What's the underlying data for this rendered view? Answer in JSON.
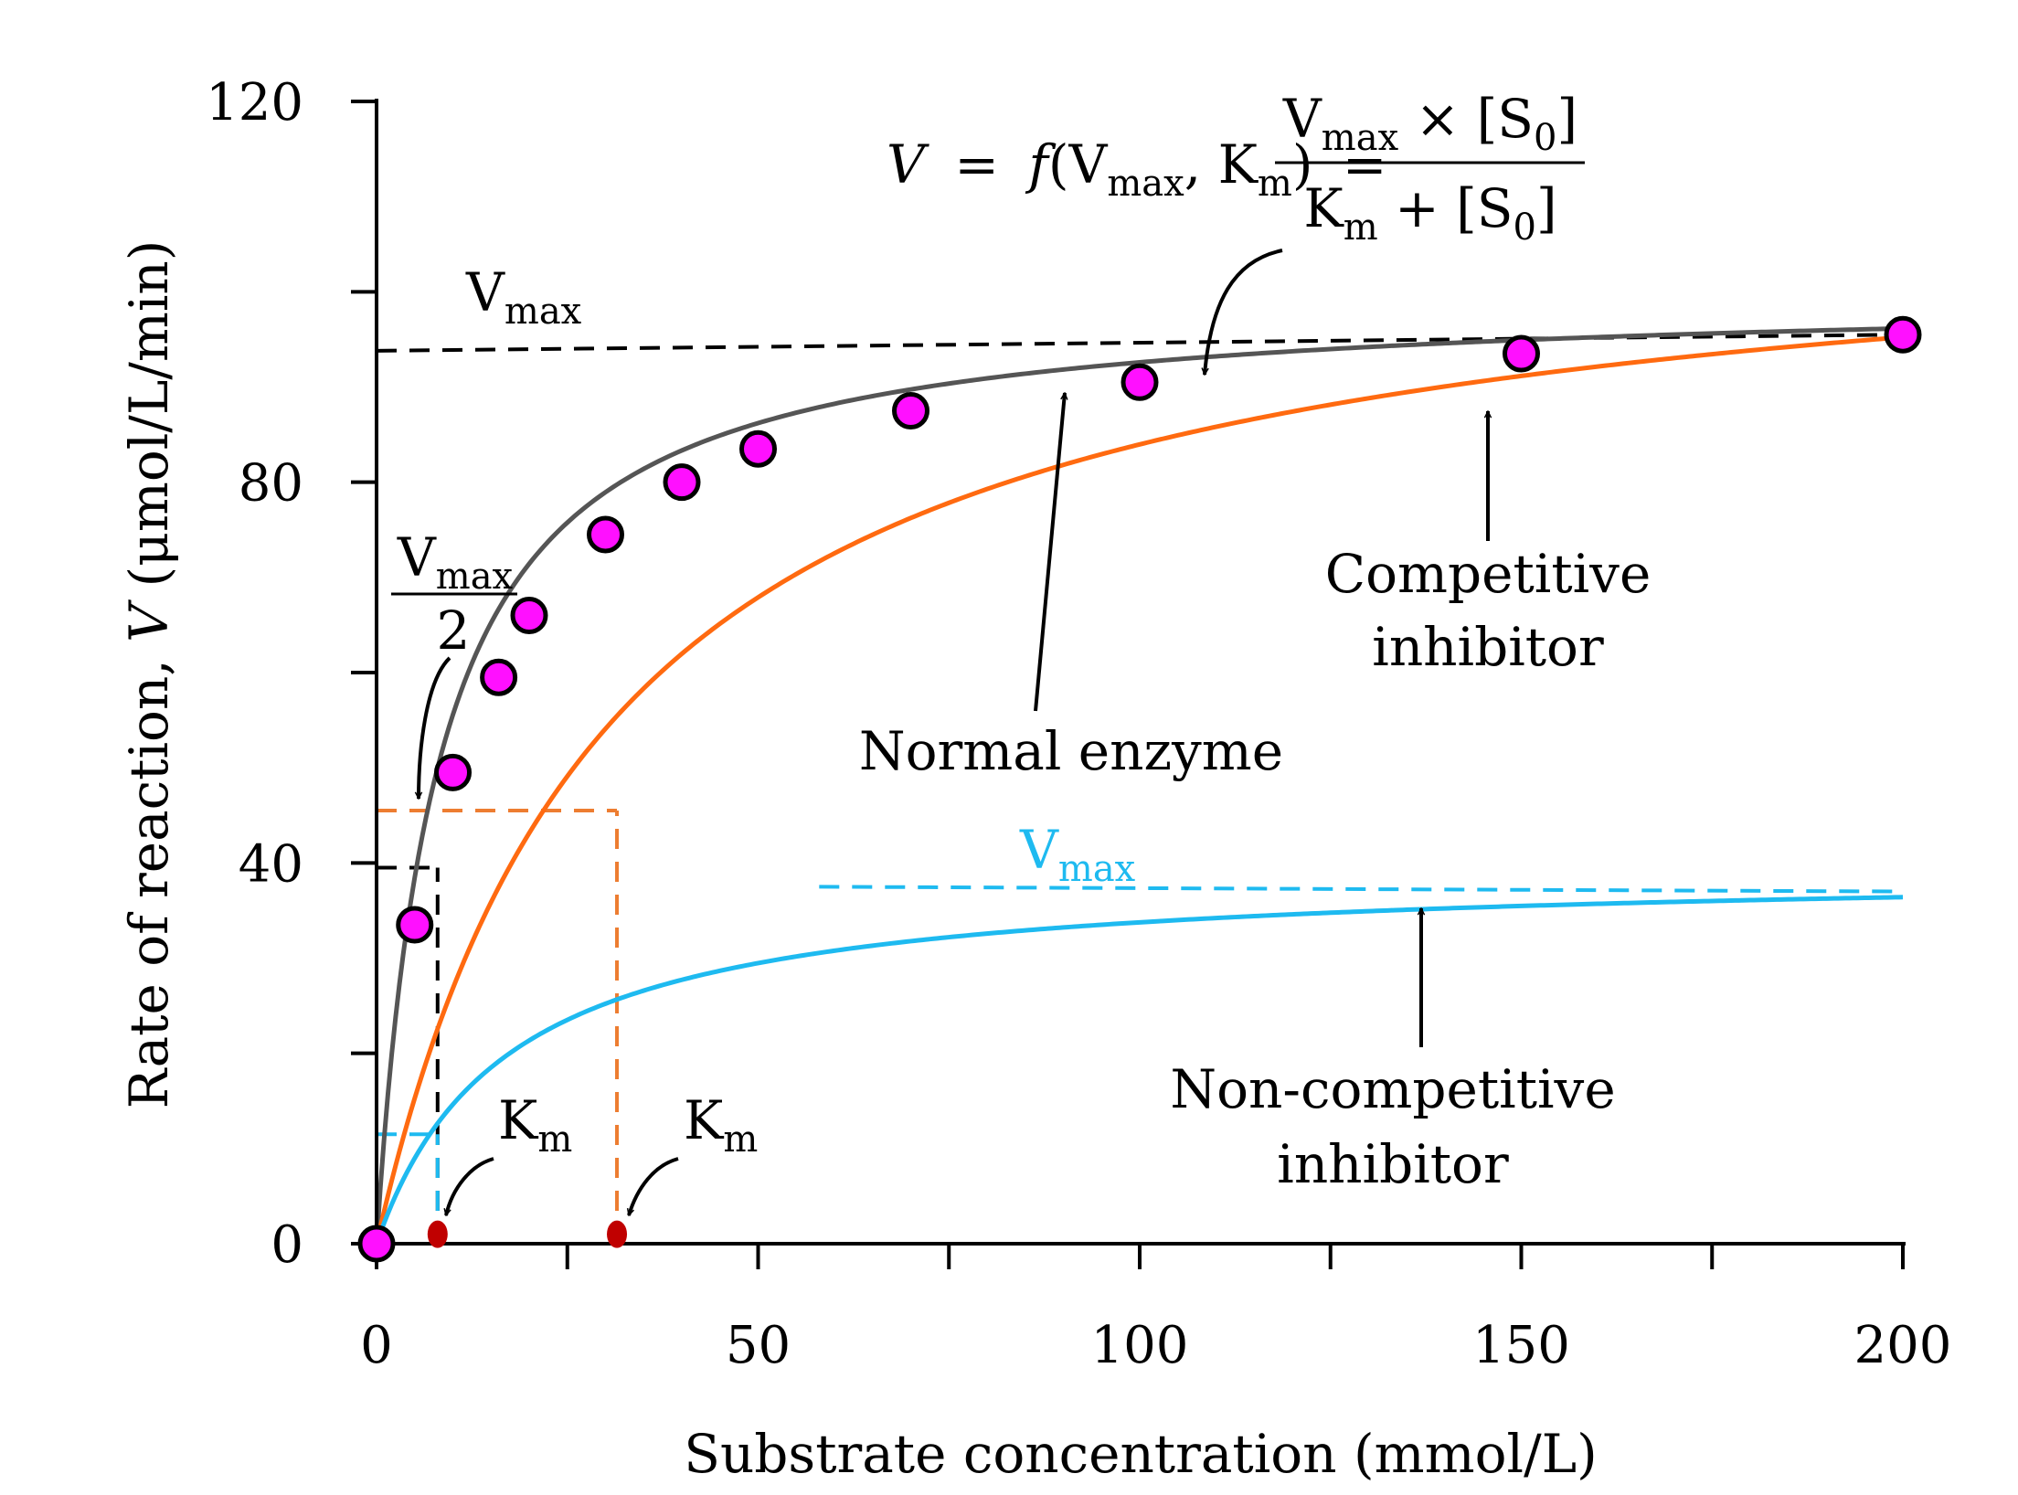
{
  "chart_data": {
    "type": "line",
    "title": "",
    "xlabel": "Substrate concentration (mmol/L)",
    "ylabel_prefix": "Rate of reaction, ",
    "ylabel_var": "V",
    "ylabel_suffix": " (μmol/L/min)",
    "xlim": [
      0,
      200
    ],
    "ylim": [
      0,
      120
    ],
    "x_ticks": [
      0,
      50,
      100,
      150,
      200
    ],
    "x_ticklabels": [
      "0",
      "50",
      "100",
      "150",
      "200"
    ],
    "x_minor_ticks": [
      25,
      75,
      125,
      175
    ],
    "y_ticks": [
      0,
      40,
      80,
      120
    ],
    "y_ticklabels": [
      "0",
      "40",
      "80",
      "120"
    ],
    "y_minor_ticks": [
      20,
      60,
      100
    ],
    "grid": false,
    "series": [
      {
        "name": "Normal enzyme",
        "model": "michaelis-menten",
        "vmax": 100,
        "km": 8,
        "color": "#555555",
        "x_range": [
          0,
          200
        ]
      },
      {
        "name": "Competitive inhibitor",
        "model": "michaelis-menten",
        "vmax": 110,
        "km": 31,
        "color": "#ff6a10",
        "x_range": [
          0,
          200
        ]
      },
      {
        "name": "Non-competitive inhibitor",
        "model": "michaelis-menten",
        "vmax": 39.5,
        "km": 17,
        "color": "#1ebaf0",
        "x_range": [
          0,
          200
        ]
      }
    ],
    "measured_points": {
      "name": "Normal enzyme data",
      "color": "#ff10ff",
      "x": [
        0,
        5,
        10,
        16,
        20,
        30,
        40,
        50,
        70,
        100,
        150,
        200
      ],
      "y": [
        0,
        33.5,
        49.5,
        59.5,
        66,
        74.5,
        80,
        83.5,
        87.5,
        90.5,
        93.5,
        95.5
      ]
    },
    "reference_lines": [
      {
        "label": "Vmax normal",
        "color": "#000000",
        "x_range": [
          0,
          200
        ],
        "y_range": [
          93.8,
          95.5
        ]
      },
      {
        "label": "Vmax non-competitive",
        "color": "#1ebaf0",
        "x_range": [
          58,
          200
        ],
        "y_range": [
          37.5,
          37.0
        ]
      },
      {
        "label": "Vmax/2 horizontal",
        "color": "#ed7d31",
        "x_range": [
          0,
          31.5
        ],
        "y": 45.5
      },
      {
        "label": "Km competitive vertical",
        "color": "#ed7d31",
        "x": 31.5,
        "y_range": [
          0,
          45.5
        ]
      },
      {
        "label": "Km normal vertical",
        "color": "#000000",
        "x": 8,
        "y_range": [
          0,
          39.5
        ]
      },
      {
        "label": "Normal 40 marker",
        "color": "#000000",
        "x_range": [
          0,
          8.5
        ],
        "y": 39.5
      },
      {
        "label": "Non-competitive half",
        "color": "#1ebaf0",
        "x_range": [
          0,
          8
        ],
        "y": 11.5
      },
      {
        "label": "Non-competitive Km vertical",
        "color": "#1ebaf0",
        "x": 8,
        "y_range": [
          0,
          11.5
        ]
      }
    ],
    "km_markers": [
      {
        "x": 8,
        "y": 1,
        "color": "#c00000"
      },
      {
        "x": 31.5,
        "y": 1,
        "color": "#c00000"
      }
    ],
    "annotations": {
      "vmax_label": {
        "main": "V",
        "sub": "max"
      },
      "vmax_nc_label": {
        "main": "V",
        "sub": "max"
      },
      "vmax_half": {
        "main": "V",
        "sub": "max",
        "denominator": "2"
      },
      "km_label_1": {
        "main": "K",
        "sub": "m"
      },
      "km_label_2": {
        "main": "K",
        "sub": "m"
      },
      "normal_enzyme": "Normal enzyme",
      "competitive": [
        "Competitive",
        "inhibitor"
      ],
      "noncompetitive": [
        "Non-competitive",
        "inhibitor"
      ]
    },
    "equation": {
      "lhs_var": "V",
      "equals": "=",
      "func": "f",
      "args_open": "(V",
      "args_sub1": "max",
      "args_mid": ", K",
      "args_sub2": "m",
      "args_close": ")",
      "equals2": "=",
      "num_v": "V",
      "num_sub": "max",
      "num_rest": " × [S",
      "num_sub0": "0",
      "num_end": "]",
      "den_k": "K",
      "den_sub": "m",
      "den_rest": " + [S",
      "den_sub0": "0",
      "den_end": "]"
    }
  }
}
